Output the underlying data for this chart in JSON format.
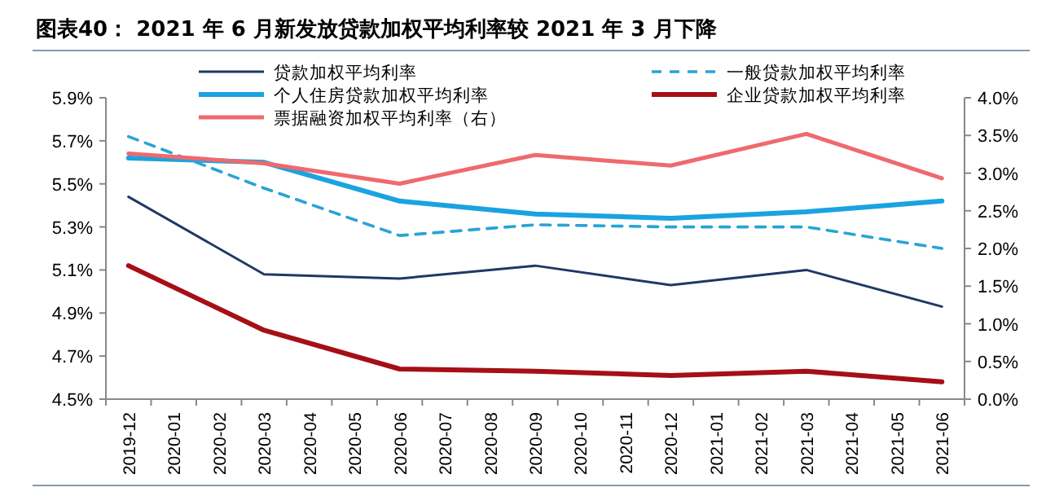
{
  "chart_data": {
    "type": "line",
    "title": "图表40：  2021 年 6 月新发放贷款加权平均利率较 2021 年 3 月下降",
    "categories": [
      "2019-12",
      "2020-01",
      "2020-02",
      "2020-03",
      "2020-04",
      "2020-05",
      "2020-06",
      "2020-07",
      "2020-08",
      "2020-09",
      "2020-10",
      "2020-11",
      "2020-12",
      "2021-01",
      "2021-02",
      "2021-03",
      "2021-04",
      "2021-05",
      "2021-06"
    ],
    "series": [
      {
        "name": "贷款加权平均利率",
        "color": "#1f3864",
        "line_style": "solid",
        "values": [
          5.44,
          null,
          null,
          5.08,
          null,
          null,
          5.06,
          null,
          null,
          5.12,
          null,
          null,
          5.03,
          null,
          null,
          5.1,
          null,
          null,
          4.93
        ]
      },
      {
        "name": "一般贷款加权平均利率",
        "color": "#29a3d6",
        "line_style": "dashed",
        "values": [
          5.72,
          null,
          null,
          5.48,
          null,
          null,
          5.26,
          null,
          null,
          5.31,
          null,
          null,
          5.3,
          null,
          null,
          5.3,
          null,
          null,
          5.2
        ]
      },
      {
        "name": "个人住房贷款加权平均利率",
        "color": "#1aa3e0",
        "line_style": "solid",
        "values": [
          5.62,
          null,
          null,
          5.6,
          null,
          null,
          5.42,
          null,
          null,
          5.36,
          null,
          null,
          5.34,
          null,
          null,
          5.37,
          null,
          null,
          5.42
        ]
      },
      {
        "name": "企业贷款加权平均利率",
        "color": "#a50f15",
        "line_style": "solid",
        "values": [
          5.12,
          null,
          null,
          4.82,
          null,
          null,
          4.64,
          null,
          null,
          4.63,
          null,
          null,
          4.61,
          null,
          null,
          4.63,
          null,
          null,
          4.58
        ]
      },
      {
        "name": "票据融资加权平均利率（右）",
        "color": "#ee6a6e",
        "line_style": "solid",
        "axis": "y2",
        "values": [
          3.26,
          null,
          null,
          3.13,
          null,
          null,
          2.86,
          null,
          null,
          3.24,
          null,
          null,
          3.1,
          null,
          null,
          3.52,
          null,
          null,
          2.93
        ]
      }
    ],
    "ylim": [
      4.5,
      5.9
    ],
    "yticks": [
      {
        "value": 4.5,
        "label": "4.5%"
      },
      {
        "value": 4.7,
        "label": "4.7%"
      },
      {
        "value": 4.9,
        "label": "4.9%"
      },
      {
        "value": 5.1,
        "label": "5.1%"
      },
      {
        "value": 5.3,
        "label": "5.3%"
      },
      {
        "value": 5.5,
        "label": "5.5%"
      },
      {
        "value": 5.7,
        "label": "5.7%"
      },
      {
        "value": 5.9,
        "label": "5.9%"
      }
    ],
    "y2lim": [
      0,
      4
    ],
    "y2ticks": [
      {
        "value": 0,
        "label": "0.0%"
      },
      {
        "value": 0.5,
        "label": "0.5%"
      },
      {
        "value": 1,
        "label": "1.0%"
      },
      {
        "value": 1.5,
        "label": "1.5%"
      },
      {
        "value": 2,
        "label": "2.0%"
      },
      {
        "value": 2.5,
        "label": "2.5%"
      },
      {
        "value": 3,
        "label": "3.0%"
      },
      {
        "value": 3.5,
        "label": "3.5%"
      },
      {
        "value": 4,
        "label": "4.0%"
      }
    ],
    "legend": "top",
    "grid": false,
    "marker": "none"
  }
}
